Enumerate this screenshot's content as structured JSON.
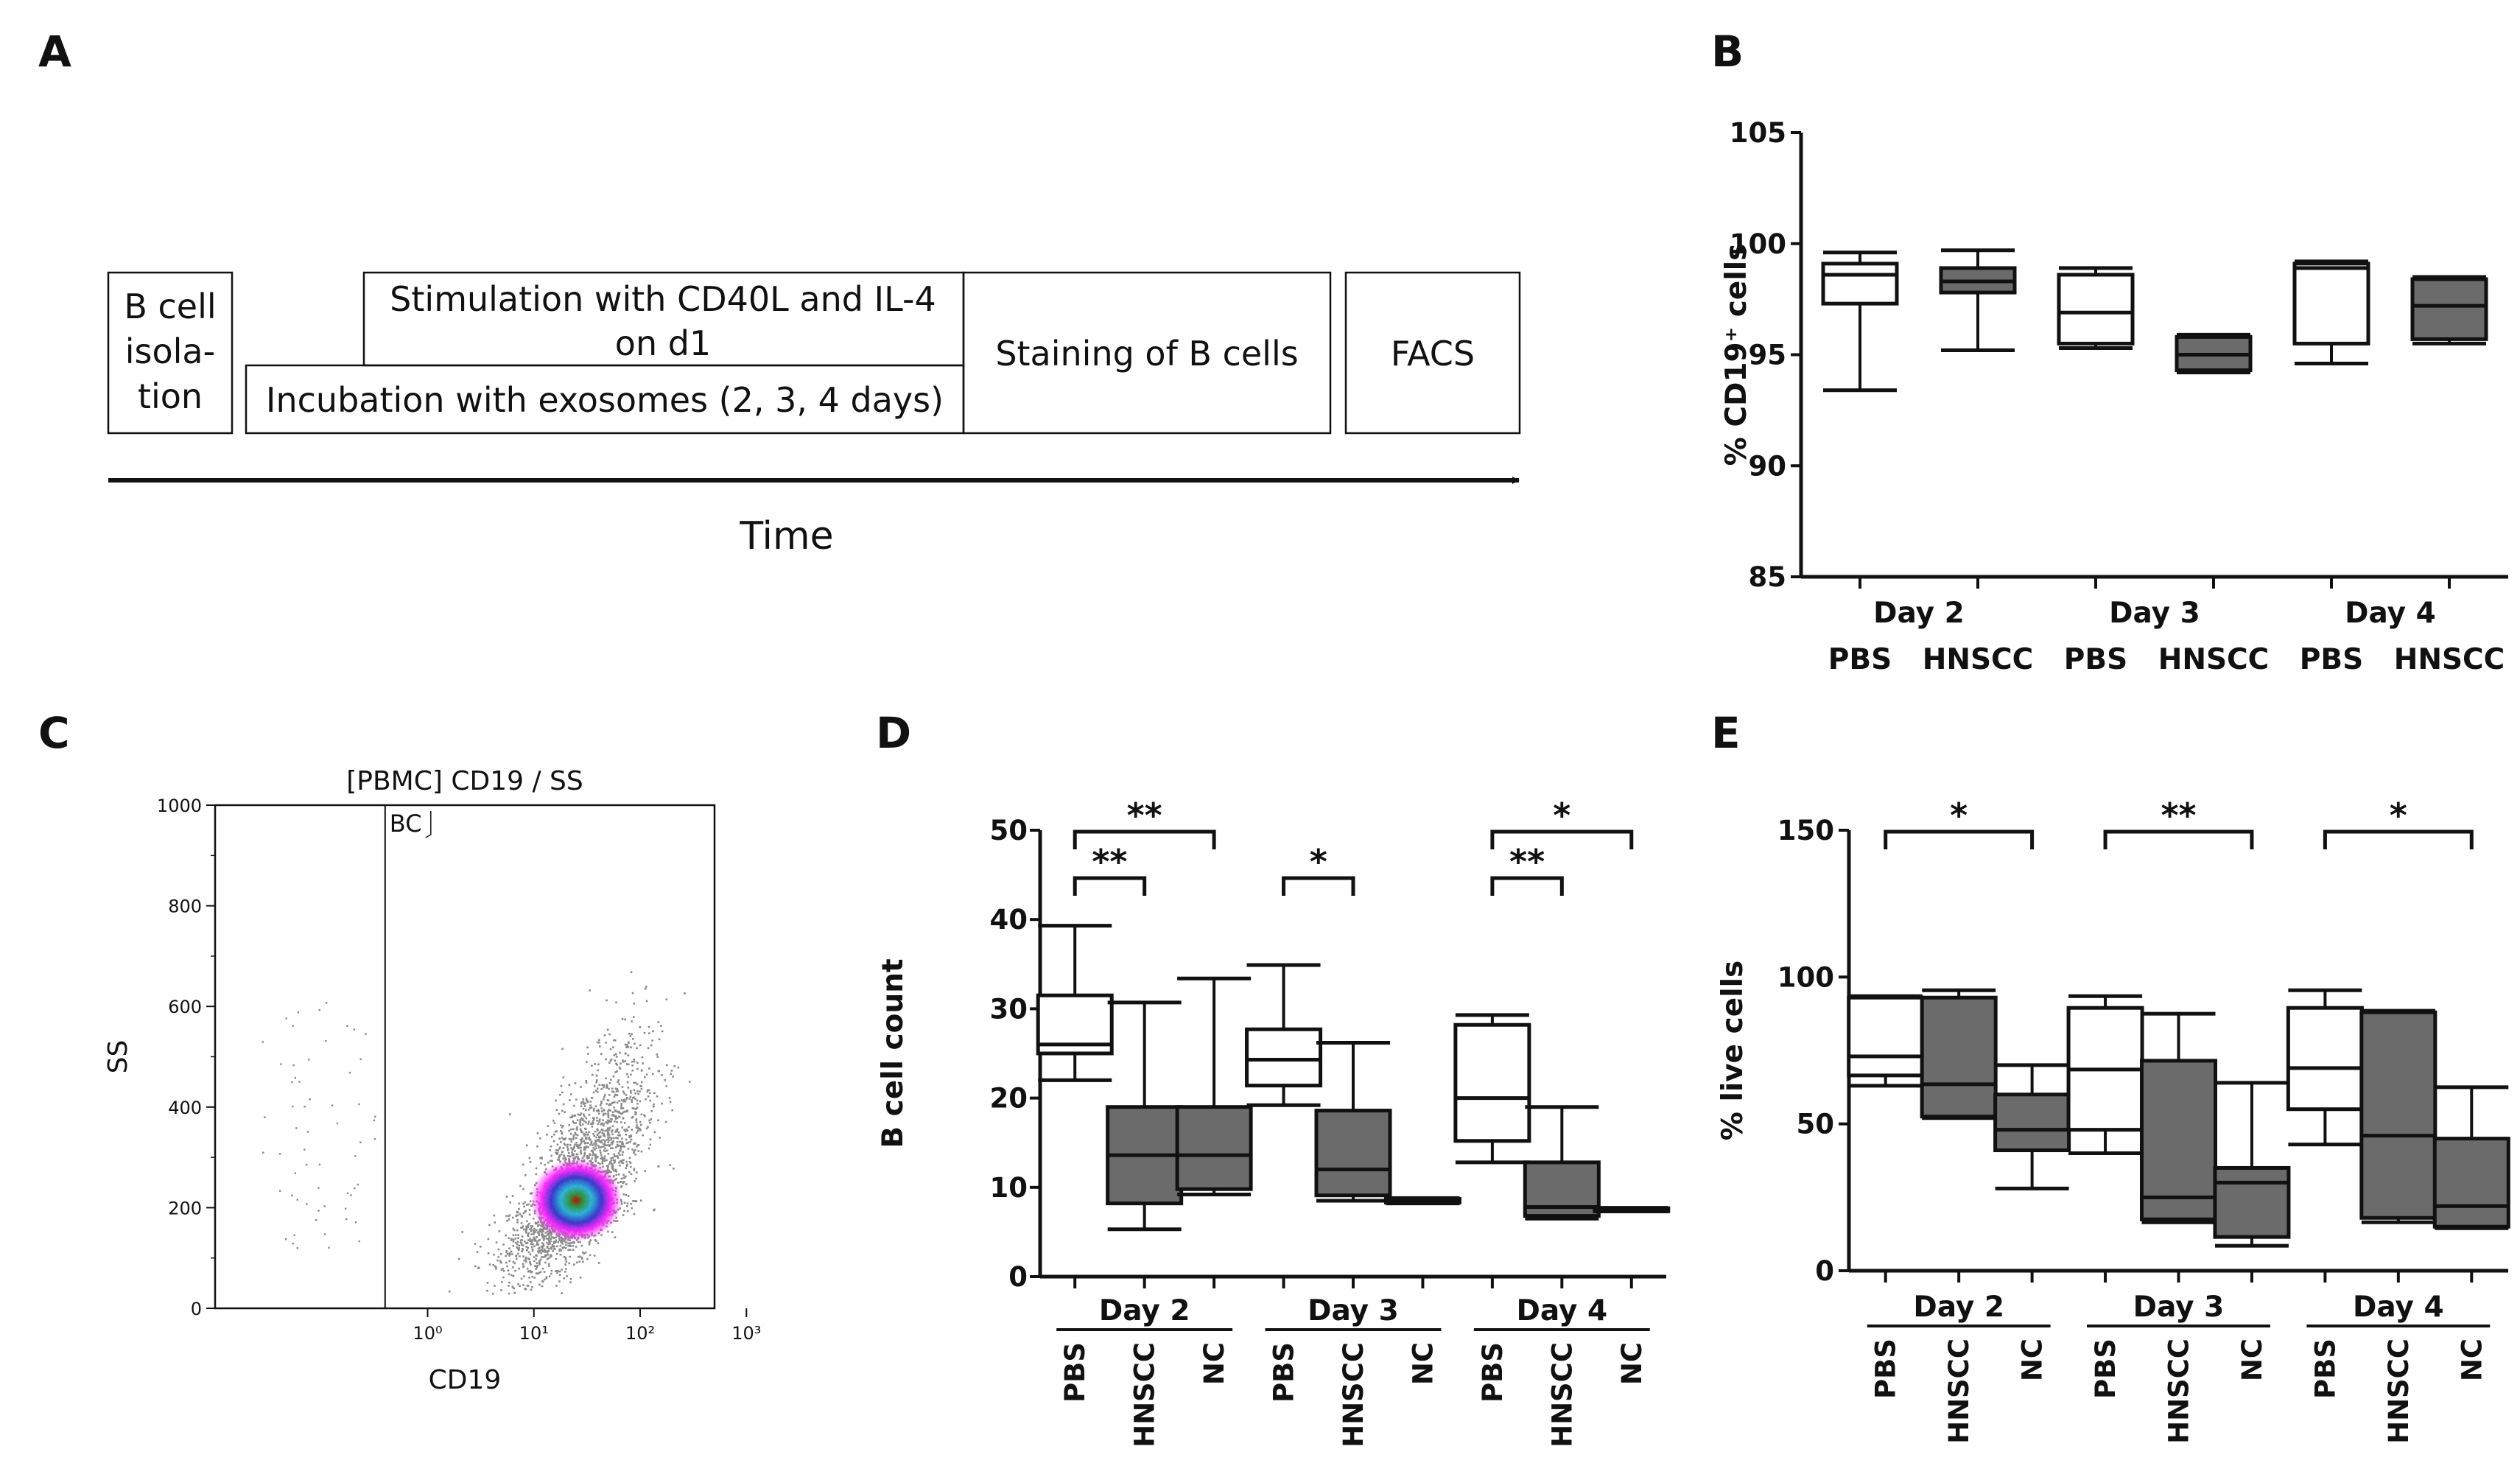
{
  "panels": {
    "a": {
      "label": "A"
    },
    "b": {
      "label": "B"
    },
    "c": {
      "label": "C"
    },
    "d": {
      "label": "D"
    },
    "e": {
      "label": "E"
    }
  },
  "schematic": {
    "box1": [
      "B cell",
      "isola-",
      "tion"
    ],
    "stim": [
      "Stimulation with CD40L and IL-4",
      "on d1"
    ],
    "incubation": "Incubation with exosomes (2, 3, 4 days)",
    "staining": "Staining of B cells",
    "facs": "FACS",
    "time_label": "Time"
  },
  "colors": {
    "open": "#ffffff",
    "filled": "#6b6b6b",
    "line": "#111111"
  },
  "chart_data": [
    {
      "id": "B",
      "type": "box",
      "ylabel": "% CD19⁺ cells",
      "ylim": [
        85,
        105
      ],
      "yticks": [
        85,
        90,
        95,
        100,
        105
      ],
      "days": [
        "Day 2",
        "Day 3",
        "Day 4"
      ],
      "groups": [
        "PBS",
        "HNSCC"
      ],
      "boxes": [
        {
          "day": "Day 2",
          "group": "PBS",
          "fill": "open",
          "min": 93.4,
          "q1": 97.3,
          "median": 98.6,
          "q3": 99.1,
          "max": 99.6
        },
        {
          "day": "Day 2",
          "group": "HNSCC",
          "fill": "filled",
          "min": 95.2,
          "q1": 97.8,
          "median": 98.3,
          "q3": 98.9,
          "max": 99.7
        },
        {
          "day": "Day 3",
          "group": "PBS",
          "fill": "open",
          "min": 95.3,
          "q1": 95.5,
          "median": 96.9,
          "q3": 98.6,
          "max": 98.9
        },
        {
          "day": "Day 3",
          "group": "HNSCC",
          "fill": "filled",
          "min": 94.2,
          "q1": 94.3,
          "median": 95.0,
          "q3": 95.8,
          "max": 95.9
        },
        {
          "day": "Day 4",
          "group": "PBS",
          "fill": "open",
          "min": 94.6,
          "q1": 95.5,
          "median": 98.9,
          "q3": 99.1,
          "max": 99.2
        },
        {
          "day": "Day 4",
          "group": "HNSCC",
          "fill": "filled",
          "min": 95.5,
          "q1": 95.7,
          "median": 97.2,
          "q3": 98.4,
          "max": 98.5
        }
      ]
    },
    {
      "id": "C",
      "type": "scatter",
      "title": "[PBMC] CD19 / SS",
      "xlabel": "CD19",
      "ylabel": "SS",
      "gate_label": "BC",
      "xscale": "log",
      "xticks": [
        "10⁰",
        "10¹",
        "10²",
        "10³"
      ],
      "yticks": [
        0,
        200,
        400,
        600,
        800,
        1000
      ],
      "ylim": [
        0,
        1000
      ],
      "gate_x_decades": -0.4,
      "population_center": {
        "x_decades": 1.4,
        "y": 215
      }
    },
    {
      "id": "D",
      "type": "box",
      "ylabel": "B cell count",
      "ylim": [
        0,
        50
      ],
      "yticks": [
        0,
        10,
        20,
        30,
        40,
        50
      ],
      "days": [
        "Day 2",
        "Day 3",
        "Day 4"
      ],
      "groups": [
        "PBS",
        "HNSCC",
        "NC"
      ],
      "boxes": [
        {
          "day": "Day 2",
          "group": "PBS",
          "fill": "open",
          "min": 22,
          "q1": 25,
          "median": 26,
          "q3": 31.5,
          "max": 39.3
        },
        {
          "day": "Day 2",
          "group": "HNSCC",
          "fill": "filled",
          "min": 5.3,
          "q1": 8.2,
          "median": 13.6,
          "q3": 19,
          "max": 30.7
        },
        {
          "day": "Day 2",
          "group": "NC",
          "fill": "filled",
          "min": 9.2,
          "q1": 9.8,
          "median": 13.6,
          "q3": 19,
          "max": 33.4
        },
        {
          "day": "Day 3",
          "group": "PBS",
          "fill": "open",
          "min": 19.2,
          "q1": 21.4,
          "median": 24.3,
          "q3": 27.7,
          "max": 34.9
        },
        {
          "day": "Day 3",
          "group": "HNSCC",
          "fill": "filled",
          "min": 8.5,
          "q1": 9.1,
          "median": 12,
          "q3": 18.6,
          "max": 26.2
        },
        {
          "day": "Day 3",
          "group": "NC",
          "fill": "filled",
          "min": 8.2,
          "q1": 8.3,
          "median": 8.5,
          "q3": 8.7,
          "max": 8.8
        },
        {
          "day": "Day 4",
          "group": "PBS",
          "fill": "open",
          "min": 12.8,
          "q1": 15.2,
          "median": 20,
          "q3": 28.2,
          "max": 29.3
        },
        {
          "day": "Day 4",
          "group": "HNSCC",
          "fill": "filled",
          "min": 6.5,
          "q1": 6.8,
          "median": 7.8,
          "q3": 12.8,
          "max": 19
        },
        {
          "day": "Day 4",
          "group": "NC",
          "fill": "filled",
          "min": 7.3,
          "q1": 7.35,
          "median": 7.5,
          "q3": 7.65,
          "max": 7.7
        }
      ],
      "significance": [
        {
          "day": "Day 2",
          "from": "PBS",
          "to": "NC",
          "label": "**",
          "level": 2
        },
        {
          "day": "Day 2",
          "from": "PBS",
          "to": "HNSCC",
          "label": "**",
          "level": 1
        },
        {
          "day": "Day 3",
          "from": "PBS",
          "to": "HNSCC",
          "label": "*",
          "level": 1
        },
        {
          "day": "Day 4",
          "from": "PBS",
          "to": "NC",
          "label": "*",
          "level": 2
        },
        {
          "day": "Day 4",
          "from": "PBS",
          "to": "HNSCC",
          "label": "**",
          "level": 1
        }
      ]
    },
    {
      "id": "E",
      "type": "box",
      "ylabel": "% live cells",
      "ylim": [
        0,
        150
      ],
      "yticks": [
        0,
        50,
        100,
        150
      ],
      "days": [
        "Day 2",
        "Day 3",
        "Day 4"
      ],
      "groups": [
        "PBS",
        "HNSCC",
        "NC"
      ],
      "boxes": [
        {
          "day": "Day 2",
          "group": "PBS",
          "fill": "open",
          "min": 63,
          "q1": 66.5,
          "median": 73,
          "q3": 93,
          "max": 93.5
        },
        {
          "day": "Day 2",
          "group": "HNSCC",
          "fill": "filled",
          "min": 52,
          "q1": 52.5,
          "median": 63.5,
          "q3": 93,
          "max": 95.5
        },
        {
          "day": "Day 2",
          "group": "NC",
          "fill": "filled",
          "min": 28,
          "q1": 41,
          "median": 48,
          "q3": 60,
          "max": 70
        },
        {
          "day": "Day 3",
          "group": "PBS",
          "fill": "open",
          "min": 40,
          "q1": 48,
          "median": 68.5,
          "q3": 89.5,
          "max": 93.5
        },
        {
          "day": "Day 3",
          "group": "HNSCC",
          "fill": "filled",
          "min": 16.5,
          "q1": 17.5,
          "median": 25,
          "q3": 71.5,
          "max": 87.5
        },
        {
          "day": "Day 3",
          "group": "NC",
          "fill": "filled",
          "min": 8.5,
          "q1": 11.5,
          "median": 30,
          "q3": 35,
          "max": 64
        },
        {
          "day": "Day 4",
          "group": "PBS",
          "fill": "open",
          "min": 43,
          "q1": 55,
          "median": 69,
          "q3": 89.5,
          "max": 95.5
        },
        {
          "day": "Day 4",
          "group": "HNSCC",
          "fill": "filled",
          "min": 16.5,
          "q1": 18,
          "median": 46,
          "q3": 88,
          "max": 88.5
        },
        {
          "day": "Day 4",
          "group": "NC",
          "fill": "filled",
          "min": 14.5,
          "q1": 15,
          "median": 22,
          "q3": 45,
          "max": 62.5
        }
      ],
      "significance": [
        {
          "day": "Day 2",
          "from": "PBS",
          "to": "NC",
          "label": "*",
          "level": 2
        },
        {
          "day": "Day 3",
          "from": "PBS",
          "to": "NC",
          "label": "**",
          "level": 2
        },
        {
          "day": "Day 4",
          "from": "PBS",
          "to": "NC",
          "label": "*",
          "level": 2
        }
      ]
    }
  ]
}
